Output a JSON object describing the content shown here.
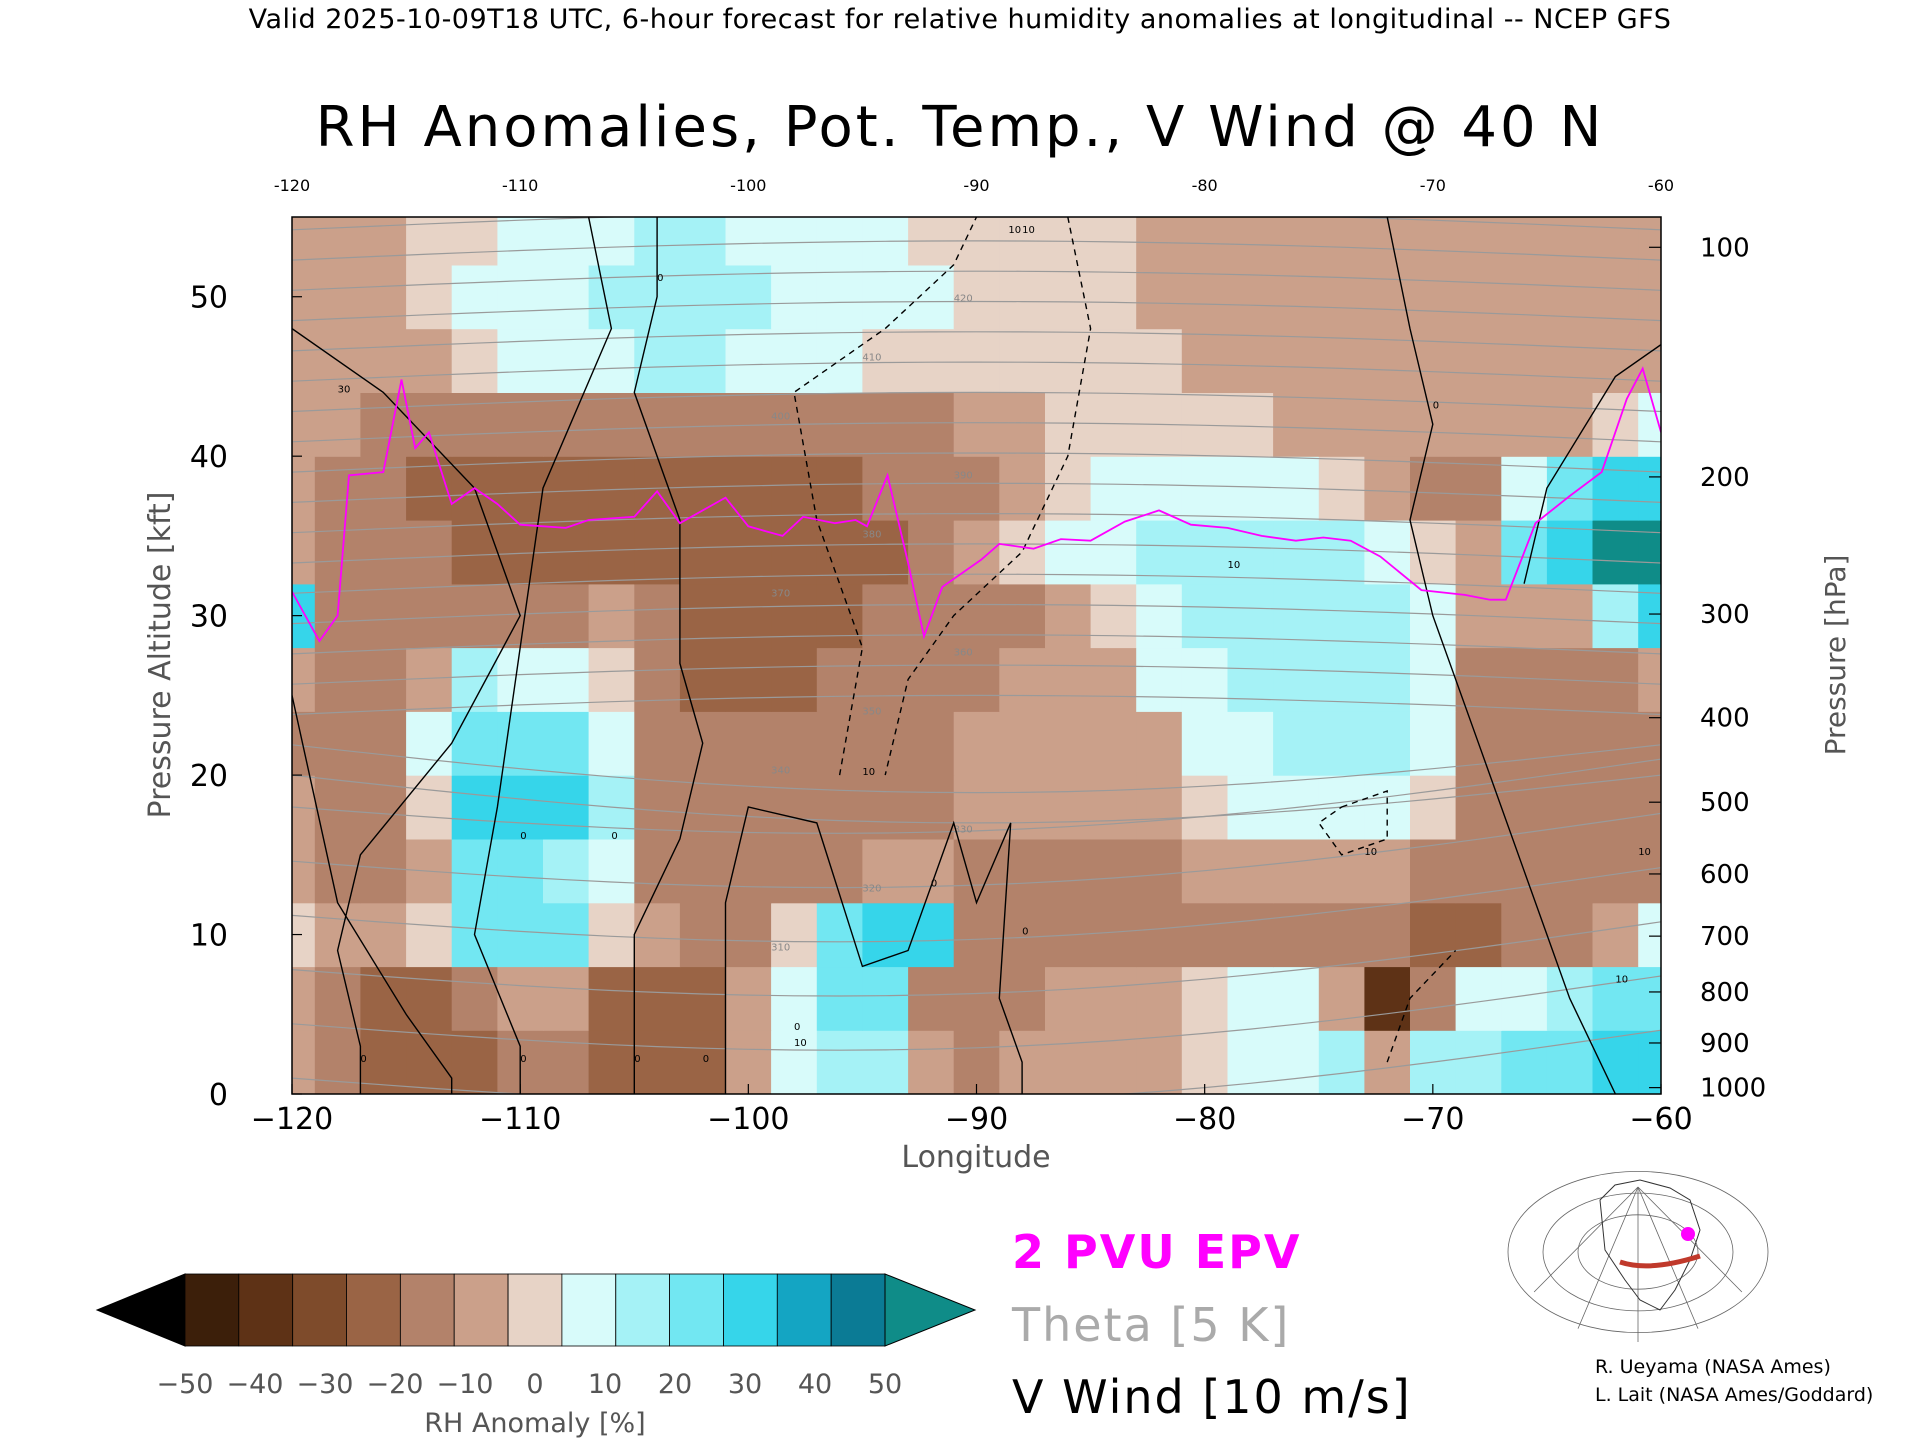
{
  "header": {
    "valid_line": "Valid 2025-10-09T18 UTC, 6-hour forecast for relative humidity anomalies at longitudinal -- NCEP GFS"
  },
  "chart_data": {
    "type": "heatmap",
    "title": "RH Anomalies, Pot. Temp., V Wind @ 40 N",
    "xlabel": "Longitude",
    "ylabel": "Pressure Altitude [kft]",
    "ylabel_right": "Pressure [hPa]",
    "xlim": [
      -120,
      -60
    ],
    "ylim": [
      0,
      55
    ],
    "x_ticks": [
      -120,
      -110,
      -100,
      -90,
      -80,
      -70,
      -60
    ],
    "x_tick_labels": [
      "−120",
      "−110",
      "−100",
      "−90",
      "−80",
      "−70",
      "−60"
    ],
    "top_tick_labels": [
      "-120",
      "-110",
      "-100",
      "-90",
      "-80",
      "-70",
      "-60"
    ],
    "y_ticks": [
      0,
      10,
      20,
      30,
      40,
      50
    ],
    "y_tick_labels": [
      "0",
      "10",
      "20",
      "30",
      "40",
      "50"
    ],
    "pressure_levels": [
      1000,
      900,
      800,
      700,
      600,
      500,
      400,
      300,
      200,
      100
    ],
    "pressure_labels": [
      "1000",
      "900",
      "800",
      "700",
      "600",
      "500",
      "400",
      "300",
      "200",
      "100"
    ],
    "pressure_altitude_kft": [
      0.4,
      3.2,
      6.4,
      9.9,
      13.8,
      18.3,
      23.6,
      30.1,
      38.7,
      53.1
    ],
    "rh_anomaly_field": {
      "lon": [
        -120,
        -118,
        -116,
        -114,
        -112,
        -110,
        -108,
        -106,
        -104,
        -102,
        -100,
        -98,
        -96,
        -94,
        -92,
        -90,
        -88,
        -86,
        -84,
        -82,
        -80,
        -78,
        -76,
        -74,
        -72,
        -70,
        -68,
        -66,
        -64,
        -62,
        -60
      ],
      "alt_kft": [
        2,
        6,
        10,
        14,
        18,
        22,
        26,
        30,
        34,
        38,
        42,
        46,
        50,
        54
      ],
      "values_pct": [
        [
          -10,
          -20,
          -30,
          -25,
          -25,
          -20,
          -20,
          -25,
          -30,
          -25,
          -10,
          10,
          20,
          20,
          -10,
          -15,
          -10,
          -10,
          -10,
          -5,
          5,
          10,
          15,
          25,
          -10,
          20,
          25,
          30,
          35,
          40,
          45
        ],
        [
          -5,
          -20,
          -25,
          -25,
          -20,
          -10,
          -10,
          -25,
          -30,
          -25,
          -10,
          15,
          30,
          35,
          -20,
          -15,
          -15,
          -10,
          -10,
          -5,
          5,
          10,
          15,
          -10,
          -45,
          -20,
          10,
          15,
          20,
          30,
          35
        ],
        [
          5,
          -10,
          -10,
          0,
          30,
          35,
          30,
          5,
          -10,
          -15,
          -15,
          0,
          30,
          45,
          40,
          -15,
          -15,
          -15,
          -15,
          -15,
          -15,
          -20,
          -20,
          -20,
          -20,
          -25,
          -25,
          -20,
          -15,
          -10,
          10
        ],
        [
          -10,
          -20,
          -15,
          -5,
          35,
          30,
          25,
          15,
          -15,
          -20,
          -20,
          -20,
          -15,
          -10,
          -10,
          -15,
          -15,
          -15,
          -15,
          -15,
          -10,
          -10,
          -10,
          -10,
          -10,
          -15,
          -20,
          -20,
          -20,
          -20,
          -20
        ],
        [
          -10,
          -15,
          -15,
          0,
          40,
          45,
          45,
          20,
          -15,
          -20,
          -20,
          -20,
          -15,
          -15,
          -15,
          -10,
          -5,
          -10,
          -10,
          -10,
          5,
          10,
          15,
          15,
          10,
          0,
          -20,
          -20,
          -20,
          -20,
          -20
        ],
        [
          -15,
          -20,
          -20,
          10,
          30,
          30,
          30,
          15,
          -15,
          -20,
          -20,
          -20,
          -15,
          -15,
          -15,
          -10,
          -5,
          -10,
          -10,
          -5,
          10,
          15,
          20,
          20,
          20,
          10,
          -20,
          -20,
          -20,
          -20,
          -20
        ],
        [
          -10,
          -15,
          -15,
          -5,
          20,
          15,
          10,
          5,
          -20,
          -25,
          -25,
          -25,
          -20,
          -15,
          -15,
          -15,
          -10,
          -10,
          -5,
          10,
          15,
          20,
          20,
          20,
          20,
          15,
          -15,
          -20,
          -20,
          -15,
          -10
        ],
        [
          45,
          -15,
          -15,
          -15,
          -15,
          -15,
          -15,
          -5,
          -20,
          -25,
          -25,
          -25,
          -25,
          -20,
          -20,
          -20,
          -15,
          -10,
          5,
          15,
          20,
          20,
          20,
          20,
          20,
          15,
          -10,
          -10,
          -10,
          20,
          40
        ],
        [
          -5,
          -20,
          -20,
          -20,
          -25,
          -25,
          -30,
          -30,
          -30,
          -30,
          -30,
          -30,
          -30,
          -30,
          -20,
          -10,
          5,
          10,
          15,
          20,
          25,
          25,
          25,
          20,
          15,
          5,
          -10,
          35,
          45,
          50,
          50
        ],
        [
          -5,
          -15,
          -20,
          -25,
          -25,
          -25,
          -25,
          -25,
          -25,
          -25,
          -25,
          -25,
          -25,
          -20,
          -20,
          -15,
          -10,
          5,
          10,
          10,
          10,
          10,
          10,
          5,
          -10,
          -15,
          -15,
          10,
          30,
          40,
          40
        ],
        [
          -10,
          -10,
          -15,
          -20,
          -20,
          -20,
          -20,
          -15,
          -15,
          -15,
          -15,
          -15,
          -15,
          -15,
          -15,
          -10,
          -5,
          5,
          5,
          5,
          5,
          0,
          -5,
          -10,
          -10,
          -10,
          -10,
          -10,
          -10,
          0,
          10
        ],
        [
          -10,
          -10,
          -10,
          -5,
          5,
          10,
          10,
          15,
          20,
          20,
          15,
          15,
          10,
          5,
          5,
          5,
          5,
          5,
          0,
          0,
          -5,
          -5,
          -10,
          -10,
          -10,
          -10,
          -10,
          -10,
          -10,
          -10,
          -10
        ],
        [
          -10,
          -10,
          -5,
          5,
          10,
          15,
          15,
          20,
          25,
          25,
          20,
          15,
          15,
          10,
          10,
          5,
          5,
          5,
          0,
          -5,
          -5,
          -10,
          -10,
          -10,
          -10,
          -10,
          -10,
          -10,
          -10,
          -10,
          -10
        ],
        [
          -10,
          -10,
          -5,
          0,
          5,
          10,
          15,
          15,
          20,
          20,
          15,
          15,
          10,
          10,
          5,
          5,
          5,
          0,
          0,
          -5,
          -5,
          -10,
          -10,
          -10,
          -10,
          -10,
          -10,
          -10,
          -10,
          -10,
          -10
        ]
      ]
    },
    "epv_2pvu_kft": {
      "lon": [
        -120,
        -118.8,
        -118,
        -117.5,
        -116,
        -115.2,
        -114.6,
        -114,
        -113,
        -112,
        -111,
        -110,
        -108,
        -107,
        -105,
        -104,
        -103,
        -101,
        -100,
        -98.5,
        -97.6,
        -96.2,
        -95.3,
        -94.8,
        -93.9,
        -93,
        -92.3,
        -91.5,
        -89.8,
        -89,
        -87.5,
        -86.3,
        -85,
        -83.5,
        -82,
        -80.6,
        -79,
        -77.5,
        -76,
        -74.8,
        -73.6,
        -72.3,
        -70.5,
        -68.6,
        -67.5,
        -66.8,
        -65.5,
        -64,
        -62.6,
        -61.5,
        -60.8,
        -60
      ],
      "alt_kft": [
        31.5,
        28.4,
        30,
        38.8,
        39,
        44.8,
        40.5,
        41.5,
        37,
        38,
        37,
        35.7,
        35.5,
        36,
        36.2,
        37.8,
        35.8,
        37.4,
        35.6,
        35,
        36.2,
        35.8,
        36,
        35.6,
        38.8,
        33.3,
        28.7,
        31.8,
        33.5,
        34.5,
        34.2,
        34.8,
        34.7,
        35.9,
        36.6,
        35.7,
        35.5,
        35,
        34.7,
        34.9,
        34.7,
        33.7,
        31.6,
        31.3,
        31,
        31,
        35.8,
        37.5,
        39,
        43.6,
        45.5,
        41.5
      ]
    },
    "theta_contours_K": [
      300,
      305,
      310,
      315,
      320,
      325,
      330,
      335,
      340,
      345,
      350,
      355,
      360,
      365,
      370,
      375,
      380,
      385,
      390,
      395,
      400,
      405,
      410,
      415,
      420
    ],
    "theta_labels": [
      "310",
      "320",
      "330",
      "340",
      "350",
      "360",
      "370",
      "380",
      "390",
      "400",
      "410",
      "420"
    ],
    "v_wind_contour_interval_ms": 10,
    "v_wind_labels": [
      "0",
      "0",
      "0",
      "0",
      "0",
      "0",
      "0",
      "0",
      "0",
      "0",
      "0",
      "10",
      "10",
      "10",
      "10",
      "10",
      "10",
      "30",
      "10",
      "10"
    ],
    "colorbar": {
      "label": "RH Anomaly [%]",
      "tick_labels": [
        "−50",
        "−40",
        "−30",
        "−20",
        "−10",
        "0",
        "10",
        "20",
        "30",
        "40",
        "50"
      ],
      "colors": [
        "#000000",
        "#3c1f0a",
        "#5e3216",
        "#7e4b2b",
        "#9a6445",
        "#b3826a",
        "#cba08a",
        "#e7d3c6",
        "#d8fbfa",
        "#a5f2f6",
        "#72e7f2",
        "#36d5ea",
        "#14a5c3",
        "#0b7b95",
        "#0f8c88"
      ]
    }
  },
  "legend": {
    "epv": "2 PVU EPV",
    "theta": "Theta [5 K]",
    "wind": "V Wind [10 m/s]",
    "epv_color": "#ff00ff",
    "theta_color": "#aaaaaa"
  },
  "credits": {
    "line1": "R. Ueyama (NASA Ames)",
    "line2": "L. Lait (NASA Ames/Goddard)"
  },
  "locator_map": {
    "highlight_color": "#c0392b",
    "marker_color": "#ff00ff"
  }
}
